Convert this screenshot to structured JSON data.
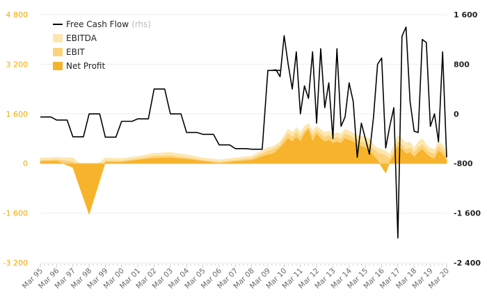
{
  "chart_data": {
    "type": "area",
    "legend_position": "top-left",
    "grid": true,
    "x_labels": [
      "Mar 95",
      "Mar 96",
      "Mar 97",
      "Mar 98",
      "Mar 99",
      "Mar 00",
      "Mar 01",
      "Mar 02",
      "Mar 03",
      "Mar 04",
      "Mar 05",
      "Mar 06",
      "Mar 07",
      "Mar 08",
      "Mar 09",
      "Mar 10",
      "Mar 11",
      "Mar 12",
      "Mar 13",
      "Mar 14",
      "Mar 15",
      "Mar 16",
      "Mar 17",
      "Mar 18",
      "Mar 19",
      "Mar 20"
    ],
    "y_left": {
      "min": -3200,
      "max": 4800,
      "ticks": [
        "4 800",
        "3 200",
        "1 600",
        "0",
        "-1 600",
        "-3 200"
      ],
      "tick_values": [
        4800,
        3200,
        1600,
        0,
        -1600,
        -3200
      ]
    },
    "y_right": {
      "min": -2400,
      "max": 1600,
      "ticks": [
        "1 600",
        "800",
        "0",
        "-800",
        "-1 600",
        "-2 400"
      ],
      "tick_values": [
        1600,
        800,
        0,
        -800,
        -1600,
        -2400
      ]
    },
    "colors": {
      "ebitda": "#fde7b0",
      "ebit": "#fcd27a",
      "net_profit": "#f7b32b",
      "fcf": "#000000",
      "left_axis": "#f2a900"
    },
    "legend": [
      {
        "key": "fcf",
        "name": "Free Cash Flow",
        "suffix": "(rhs)"
      },
      {
        "key": "ebitda",
        "name": "EBITDA",
        "suffix": ""
      },
      {
        "key": "ebit",
        "name": "EBIT",
        "suffix": ""
      },
      {
        "key": "net_profit",
        "name": "Net Profit",
        "suffix": ""
      }
    ],
    "annual": {
      "x": [
        1995,
        1996,
        1997,
        1998,
        1999,
        2000,
        2001,
        2002,
        2003,
        2004,
        2005,
        2006,
        2007,
        2008,
        2009
      ],
      "ebitda": [
        180,
        200,
        180,
        -260,
        180,
        160,
        230,
        330,
        360,
        280,
        180,
        120,
        180,
        240,
        520
      ],
      "ebit": [
        100,
        120,
        60,
        -1600,
        80,
        80,
        150,
        240,
        250,
        180,
        100,
        40,
        100,
        160,
        400
      ],
      "net_profit": [
        60,
        80,
        -120,
        -1630,
        40,
        40,
        110,
        170,
        180,
        140,
        70,
        0,
        60,
        100,
        280
      ],
      "fcf": [
        -50,
        -100,
        -370,
        0,
        -375,
        -120,
        -80,
        400,
        0,
        -300,
        -330,
        -500,
        -560,
        -570,
        700
      ]
    },
    "quarterly": {
      "x": [
        2009.25,
        2009.5,
        2009.75,
        2010.0,
        2010.25,
        2010.5,
        2010.75,
        2011.0,
        2011.25,
        2011.5,
        2011.75,
        2012.0,
        2012.25,
        2012.5,
        2012.75,
        2013.0,
        2013.25,
        2013.5,
        2013.75,
        2014.0,
        2014.25,
        2014.5,
        2014.75,
        2015.0,
        2015.25,
        2015.5,
        2015.75,
        2016.0,
        2016.25,
        2016.5,
        2016.75,
        2017.0,
        2017.25,
        2017.5,
        2017.75,
        2018.0,
        2018.25,
        2018.5,
        2018.75,
        2019.0,
        2019.25,
        2019.5,
        2019.75,
        2020.0
      ],
      "ebitda": [
        540,
        600,
        700,
        900,
        1100,
        1000,
        1150,
        1000,
        1200,
        1300,
        1050,
        1200,
        1100,
        1000,
        1050,
        950,
        1000,
        950,
        1100,
        1050,
        980,
        900,
        880,
        850,
        800,
        600,
        500,
        450,
        400,
        300,
        600,
        900,
        800,
        650,
        700,
        500,
        700,
        800,
        600,
        500,
        450,
        700,
        600,
        400
      ],
      "ebit": [
        430,
        500,
        600,
        780,
        950,
        850,
        1000,
        850,
        1050,
        1150,
        900,
        1050,
        950,
        850,
        900,
        800,
        850,
        800,
        950,
        900,
        830,
        750,
        700,
        650,
        600,
        450,
        350,
        300,
        250,
        150,
        400,
        700,
        600,
        450,
        500,
        350,
        500,
        600,
        450,
        350,
        300,
        550,
        450,
        250
      ],
      "net_profit": [
        300,
        380,
        500,
        650,
        800,
        700,
        850,
        700,
        950,
        1100,
        700,
        950,
        800,
        700,
        750,
        650,
        700,
        650,
        800,
        750,
        700,
        600,
        550,
        500,
        400,
        250,
        100,
        -100,
        -300,
        50,
        250,
        550,
        450,
        300,
        350,
        200,
        350,
        450,
        300,
        200,
        150,
        400,
        300,
        100
      ],
      "fcf": [
        700,
        710,
        600,
        1260,
        800,
        400,
        1000,
        0,
        450,
        250,
        1000,
        -150,
        1050,
        100,
        500,
        -400,
        1050,
        -200,
        -50,
        500,
        200,
        -700,
        -150,
        -400,
        -650,
        -50,
        800,
        900,
        -550,
        -200,
        100,
        -2000,
        1250,
        1400,
        200,
        -280,
        -300,
        1200,
        1150,
        -200,
        0,
        -450,
        1000,
        -700
      ]
    }
  }
}
